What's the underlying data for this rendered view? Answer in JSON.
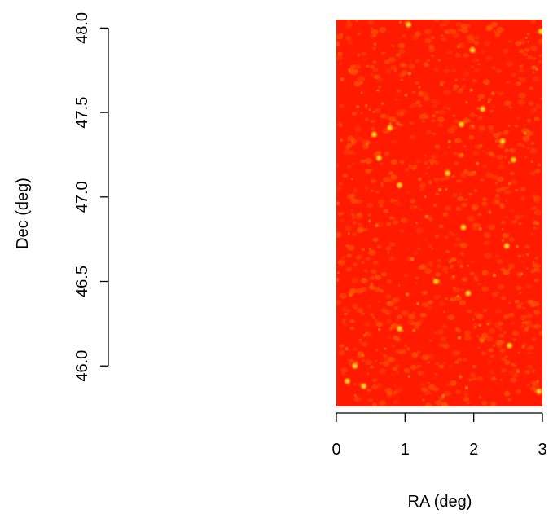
{
  "chart_data": {
    "type": "heatmap",
    "title": "",
    "xlabel": "RA (deg)",
    "ylabel": "Dec (deg)",
    "xlim": [
      0,
      3
    ],
    "ylim": [
      45.76,
      48.05
    ],
    "x_ticks": [
      0,
      1,
      2,
      3
    ],
    "x_tick_labels": [
      "0",
      "1",
      "2",
      "3"
    ],
    "y_ticks": [
      46.0,
      46.5,
      47.0,
      47.5,
      48.0
    ],
    "y_tick_labels": [
      "46.0",
      "46.5",
      "47.0",
      "47.5",
      "48.0"
    ],
    "image_extent": {
      "x": [
        0,
        3
      ],
      "y": [
        45.76,
        48.05
      ]
    },
    "colors": {
      "background": "#ff1a00",
      "texture": "#ff5a00",
      "bright": "#ffee55"
    },
    "bright_sources": [
      {
        "x": 0.16,
        "y": 45.91
      },
      {
        "x": 0.27,
        "y": 46.0
      },
      {
        "x": 0.4,
        "y": 45.88
      },
      {
        "x": 0.92,
        "y": 46.22
      },
      {
        "x": 1.85,
        "y": 46.82
      },
      {
        "x": 1.92,
        "y": 46.43
      },
      {
        "x": 2.48,
        "y": 46.71
      },
      {
        "x": 2.52,
        "y": 46.12
      },
      {
        "x": 1.62,
        "y": 47.14
      },
      {
        "x": 1.82,
        "y": 47.43
      },
      {
        "x": 0.55,
        "y": 47.37
      },
      {
        "x": 0.62,
        "y": 47.23
      },
      {
        "x": 2.42,
        "y": 47.33
      },
      {
        "x": 2.58,
        "y": 47.22
      },
      {
        "x": 1.98,
        "y": 47.87
      },
      {
        "x": 2.98,
        "y": 47.98
      },
      {
        "x": 1.05,
        "y": 48.02
      },
      {
        "x": 0.78,
        "y": 47.41
      },
      {
        "x": 1.45,
        "y": 46.5
      },
      {
        "x": 2.95,
        "y": 45.85
      },
      {
        "x": 0.92,
        "y": 47.07
      },
      {
        "x": 2.13,
        "y": 47.52
      }
    ]
  }
}
